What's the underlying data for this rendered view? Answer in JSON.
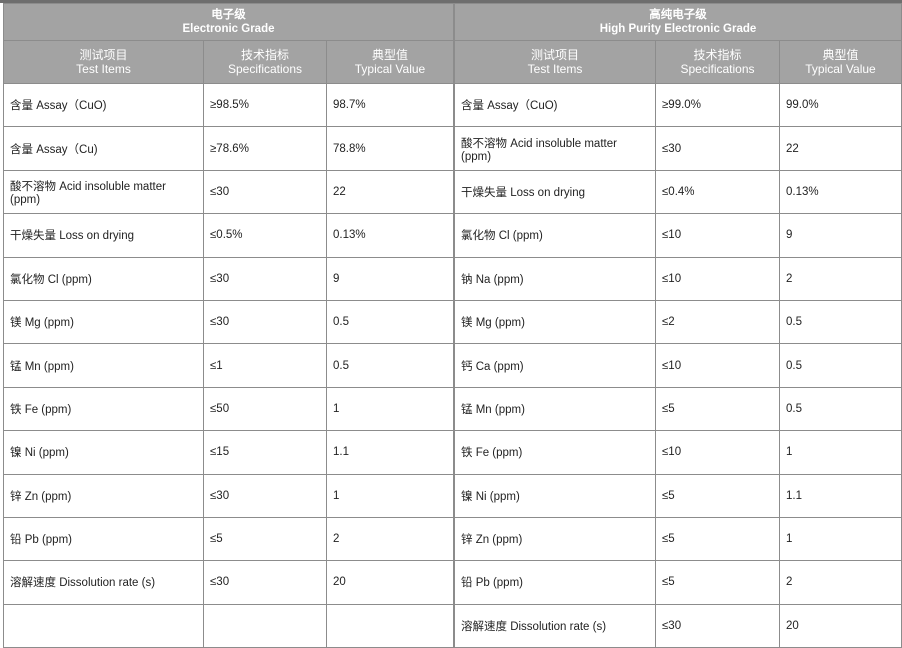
{
  "tables": [
    {
      "title_cn": "电子级",
      "title_en": "Electronic Grade",
      "headers": [
        {
          "cn": "测试项目",
          "en": "Test Items"
        },
        {
          "cn": "技术指标",
          "en": "Specifications"
        },
        {
          "cn": "典型值",
          "en": "Typical Value"
        }
      ],
      "rows": [
        [
          "含量 Assay（CuO)",
          "≥98.5%",
          "98.7%"
        ],
        [
          "含量 Assay（Cu)",
          "≥78.6%",
          "78.8%"
        ],
        [
          "酸不溶物 Acid insoluble matter (ppm)",
          "≤30",
          "22"
        ],
        [
          "干燥失量 Loss on drying",
          "≤0.5%",
          "0.13%"
        ],
        [
          "氯化物 Cl (ppm)",
          "≤30",
          "9"
        ],
        [
          "镁 Mg (ppm)",
          "≤30",
          "0.5"
        ],
        [
          "锰 Mn (ppm)",
          "≤1",
          "0.5"
        ],
        [
          "铁 Fe (ppm)",
          "≤50",
          "1"
        ],
        [
          "镍 Ni (ppm)",
          "≤15",
          "1.1"
        ],
        [
          "锌 Zn (ppm)",
          "≤30",
          "1"
        ],
        [
          "铅 Pb (ppm)",
          "≤5",
          "2"
        ],
        [
          "溶解速度 Dissolution rate (s)",
          "≤30",
          "20"
        ],
        [
          "",
          "",
          ""
        ]
      ]
    },
    {
      "title_cn": "高纯电子级",
      "title_en": "High Purity Electronic Grade",
      "headers": [
        {
          "cn": "测试项目",
          "en": "Test Items"
        },
        {
          "cn": "技术指标",
          "en": "Specifications"
        },
        {
          "cn": "典型值",
          "en": "Typical Value"
        }
      ],
      "rows": [
        [
          "含量 Assay（CuO)",
          "≥99.0%",
          "99.0%"
        ],
        [
          "酸不溶物 Acid insoluble matter (ppm)",
          "≤30",
          "22"
        ],
        [
          "干燥失量 Loss on drying",
          "≤0.4%",
          "0.13%"
        ],
        [
          "氯化物 Cl (ppm)",
          "≤10",
          "9"
        ],
        [
          "钠 Na (ppm)",
          "≤10",
          "2"
        ],
        [
          "镁 Mg (ppm)",
          "≤2",
          "0.5"
        ],
        [
          "钙 Ca (ppm)",
          "≤10",
          "0.5"
        ],
        [
          "锰 Mn (ppm)",
          "≤5",
          "0.5"
        ],
        [
          "铁 Fe (ppm)",
          "≤10",
          "1"
        ],
        [
          "镍 Ni (ppm)",
          "≤5",
          "1.1"
        ],
        [
          "锌 Zn (ppm)",
          "≤5",
          "1"
        ],
        [
          "铅 Pb (ppm)",
          "≤5",
          "2"
        ],
        [
          "溶解速度 Dissolution rate (s)",
          "≤30",
          "20"
        ]
      ]
    }
  ],
  "colors": {
    "header_bg": "#a3a3a3",
    "border": "#8c8c8c"
  }
}
